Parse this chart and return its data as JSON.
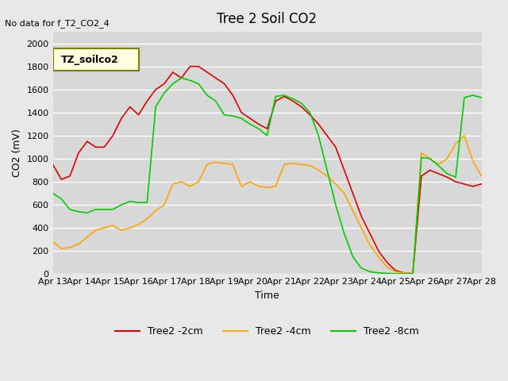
{
  "title": "Tree 2 Soil CO2",
  "no_data_text": "No data for f_T2_CO2_4",
  "ylabel": "CO2 (mV)",
  "xlabel": "Time",
  "legend_label": "TZ_soilco2",
  "ylim": [
    0,
    2100
  ],
  "background_color": "#e8e8e8",
  "plot_bg_color": "#d8d8d8",
  "grid_color": "#ffffff",
  "series": {
    "red": {
      "label": "Tree2 -2cm",
      "color": "#dd0000",
      "x": [
        0,
        0.3,
        0.6,
        0.9,
        1.2,
        1.5,
        1.8,
        2.1,
        2.4,
        2.7,
        3.0,
        3.3,
        3.6,
        3.9,
        4.2,
        4.5,
        4.8,
        5.1,
        5.4,
        5.7,
        6.0,
        6.3,
        6.6,
        6.9,
        7.2,
        7.5,
        7.8,
        8.1,
        8.4,
        8.7,
        9.0,
        9.3,
        9.6,
        9.9,
        10.2,
        10.5,
        10.8,
        11.1,
        11.4,
        11.7,
        12.0,
        12.3,
        12.6,
        12.9,
        13.2,
        13.5,
        13.8,
        14.1,
        14.4,
        14.7,
        15.0
      ],
      "y": [
        950,
        820,
        850,
        1050,
        1150,
        1100,
        1100,
        1200,
        1350,
        1450,
        1380,
        1500,
        1600,
        1650,
        1750,
        1700,
        1800,
        1800,
        1750,
        1700,
        1650,
        1550,
        1400,
        1350,
        1300,
        1260,
        1500,
        1540,
        1500,
        1450,
        1380,
        1300,
        1200,
        1100,
        900,
        700,
        500,
        350,
        200,
        100,
        30,
        10,
        5,
        850,
        900,
        870,
        840,
        800,
        780,
        760,
        780
      ]
    },
    "orange": {
      "label": "Tree2 -4cm",
      "color": "#ffa500",
      "x": [
        0,
        0.3,
        0.6,
        0.9,
        1.2,
        1.5,
        1.8,
        2.1,
        2.4,
        2.7,
        3.0,
        3.3,
        3.6,
        3.9,
        4.2,
        4.5,
        4.8,
        5.1,
        5.4,
        5.7,
        6.0,
        6.3,
        6.6,
        6.9,
        7.2,
        7.5,
        7.8,
        8.1,
        8.4,
        8.7,
        9.0,
        9.3,
        9.6,
        9.9,
        10.2,
        10.5,
        10.8,
        11.1,
        11.4,
        11.7,
        12.0,
        12.3,
        12.6,
        12.9,
        13.2,
        13.5,
        13.8,
        14.1,
        14.4,
        14.7,
        15.0
      ],
      "y": [
        280,
        220,
        230,
        260,
        320,
        380,
        400,
        420,
        380,
        400,
        430,
        480,
        550,
        600,
        780,
        800,
        760,
        800,
        950,
        970,
        960,
        950,
        760,
        800,
        760,
        750,
        760,
        950,
        960,
        950,
        940,
        900,
        850,
        780,
        700,
        550,
        400,
        250,
        150,
        60,
        20,
        10,
        5,
        1050,
        1000,
        950,
        1000,
        1130,
        1200,
        980,
        850
      ]
    },
    "green": {
      "label": "Tree2 -8cm",
      "color": "#00cc00",
      "x": [
        0,
        0.3,
        0.6,
        0.9,
        1.2,
        1.5,
        1.8,
        2.1,
        2.4,
        2.7,
        3.0,
        3.3,
        3.6,
        3.9,
        4.2,
        4.5,
        4.8,
        5.1,
        5.4,
        5.7,
        6.0,
        6.3,
        6.6,
        6.9,
        7.2,
        7.5,
        7.8,
        8.1,
        8.4,
        8.7,
        9.0,
        9.3,
        9.6,
        9.9,
        10.2,
        10.5,
        10.8,
        11.1,
        11.4,
        11.7,
        12.0,
        12.3,
        12.6,
        12.9,
        13.2,
        13.5,
        13.8,
        14.1,
        14.4,
        14.7,
        15.0
      ],
      "y": [
        700,
        650,
        560,
        540,
        530,
        560,
        560,
        560,
        600,
        630,
        620,
        620,
        1450,
        1570,
        1650,
        1700,
        1680,
        1650,
        1550,
        1500,
        1380,
        1370,
        1350,
        1300,
        1260,
        1200,
        1540,
        1550,
        1520,
        1480,
        1400,
        1200,
        900,
        600,
        350,
        150,
        50,
        20,
        10,
        5,
        3,
        2,
        1,
        1010,
        1000,
        940,
        870,
        840,
        1530,
        1550,
        1530
      ]
    }
  },
  "xtick_labels": [
    "Apr 13",
    "Apr 14",
    "Apr 15",
    "Apr 16",
    "Apr 17",
    "Apr 18",
    "Apr 19",
    "Apr 20",
    "Apr 21",
    "Apr 22",
    "Apr 23",
    "Apr 24",
    "Apr 25",
    "Apr 26",
    "Apr 27",
    "Apr 28"
  ],
  "xtick_positions": [
    0,
    1,
    2,
    3,
    4,
    5,
    6,
    7,
    8,
    9,
    10,
    11,
    12,
    13,
    14,
    15
  ],
  "ytick_labels": [
    "0",
    "200",
    "400",
    "600",
    "800",
    "1000",
    "1200",
    "1400",
    "1600",
    "1800",
    "2000"
  ],
  "ytick_positions": [
    0,
    200,
    400,
    600,
    800,
    1000,
    1200,
    1400,
    1600,
    1800,
    2000
  ]
}
